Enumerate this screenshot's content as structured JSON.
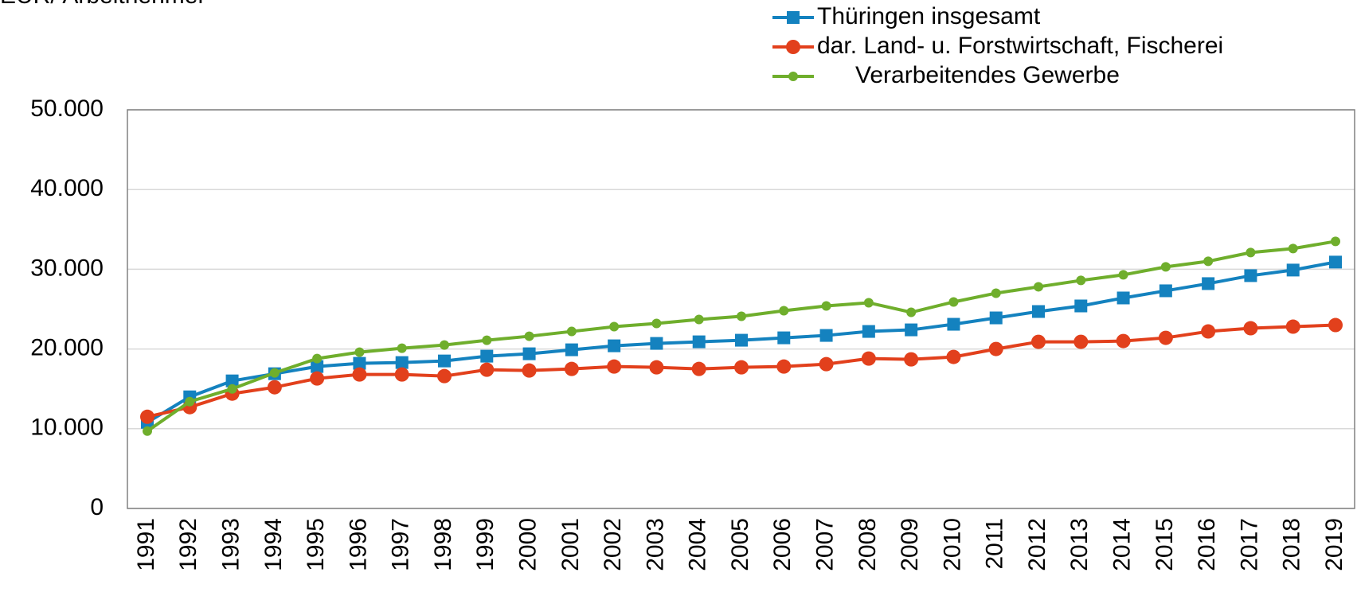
{
  "chart_data": {
    "type": "line",
    "y_label": "EUR/ Arbeitnehmer",
    "categories": [
      "1991",
      "1992",
      "1993",
      "1994",
      "1995",
      "1996",
      "1997",
      "1998",
      "1999",
      "2000",
      "2001",
      "2002",
      "2003",
      "2004",
      "2005",
      "2006",
      "2007",
      "2008",
      "2009",
      "2010",
      "2011",
      "2012",
      "2013",
      "2014",
      "2015",
      "2016",
      "2017",
      "2018",
      "2019"
    ],
    "series": [
      {
        "name": "Thüringen insgesamt",
        "color": "#1482bf",
        "marker": "square",
        "values": [
          10800,
          14000,
          16000,
          16900,
          17800,
          18200,
          18300,
          18500,
          19100,
          19400,
          19900,
          20400,
          20700,
          20900,
          21100,
          21400,
          21700,
          22200,
          22400,
          23100,
          23900,
          24700,
          25400,
          26400,
          27300,
          28200,
          29200,
          29900,
          30900
        ]
      },
      {
        "name": "dar. Land- u. Forstwirtschaft, Fischerei",
        "color": "#e2401c",
        "marker": "circle",
        "values": [
          11500,
          12700,
          14400,
          15200,
          16300,
          16800,
          16800,
          16600,
          17400,
          17300,
          17500,
          17800,
          17700,
          17500,
          17700,
          17800,
          18100,
          18800,
          18700,
          19000,
          20000,
          20900,
          20900,
          21000,
          21400,
          22200,
          22600,
          22800,
          23000
        ]
      },
      {
        "name": "Verarbeitendes Gewerbe",
        "color": "#6fae2c",
        "marker": "small-circle",
        "values": [
          9700,
          13400,
          15000,
          17000,
          18800,
          19600,
          20100,
          20500,
          21100,
          21600,
          22200,
          22800,
          23200,
          23700,
          24100,
          24800,
          25400,
          25800,
          24600,
          25900,
          27000,
          27800,
          28600,
          29300,
          30300,
          31000,
          32100,
          32600,
          33500
        ]
      }
    ],
    "ylim": [
      0,
      50000
    ],
    "yticks": [
      0,
      {
        "value": 10000,
        "label": "10.000"
      },
      {
        "value": 20000,
        "label": "20.000"
      },
      {
        "value": 30000,
        "label": "30.000"
      },
      {
        "value": 40000,
        "label": "40.000"
      },
      {
        "value": 50000,
        "label": "50.000"
      }
    ],
    "grid": true
  }
}
